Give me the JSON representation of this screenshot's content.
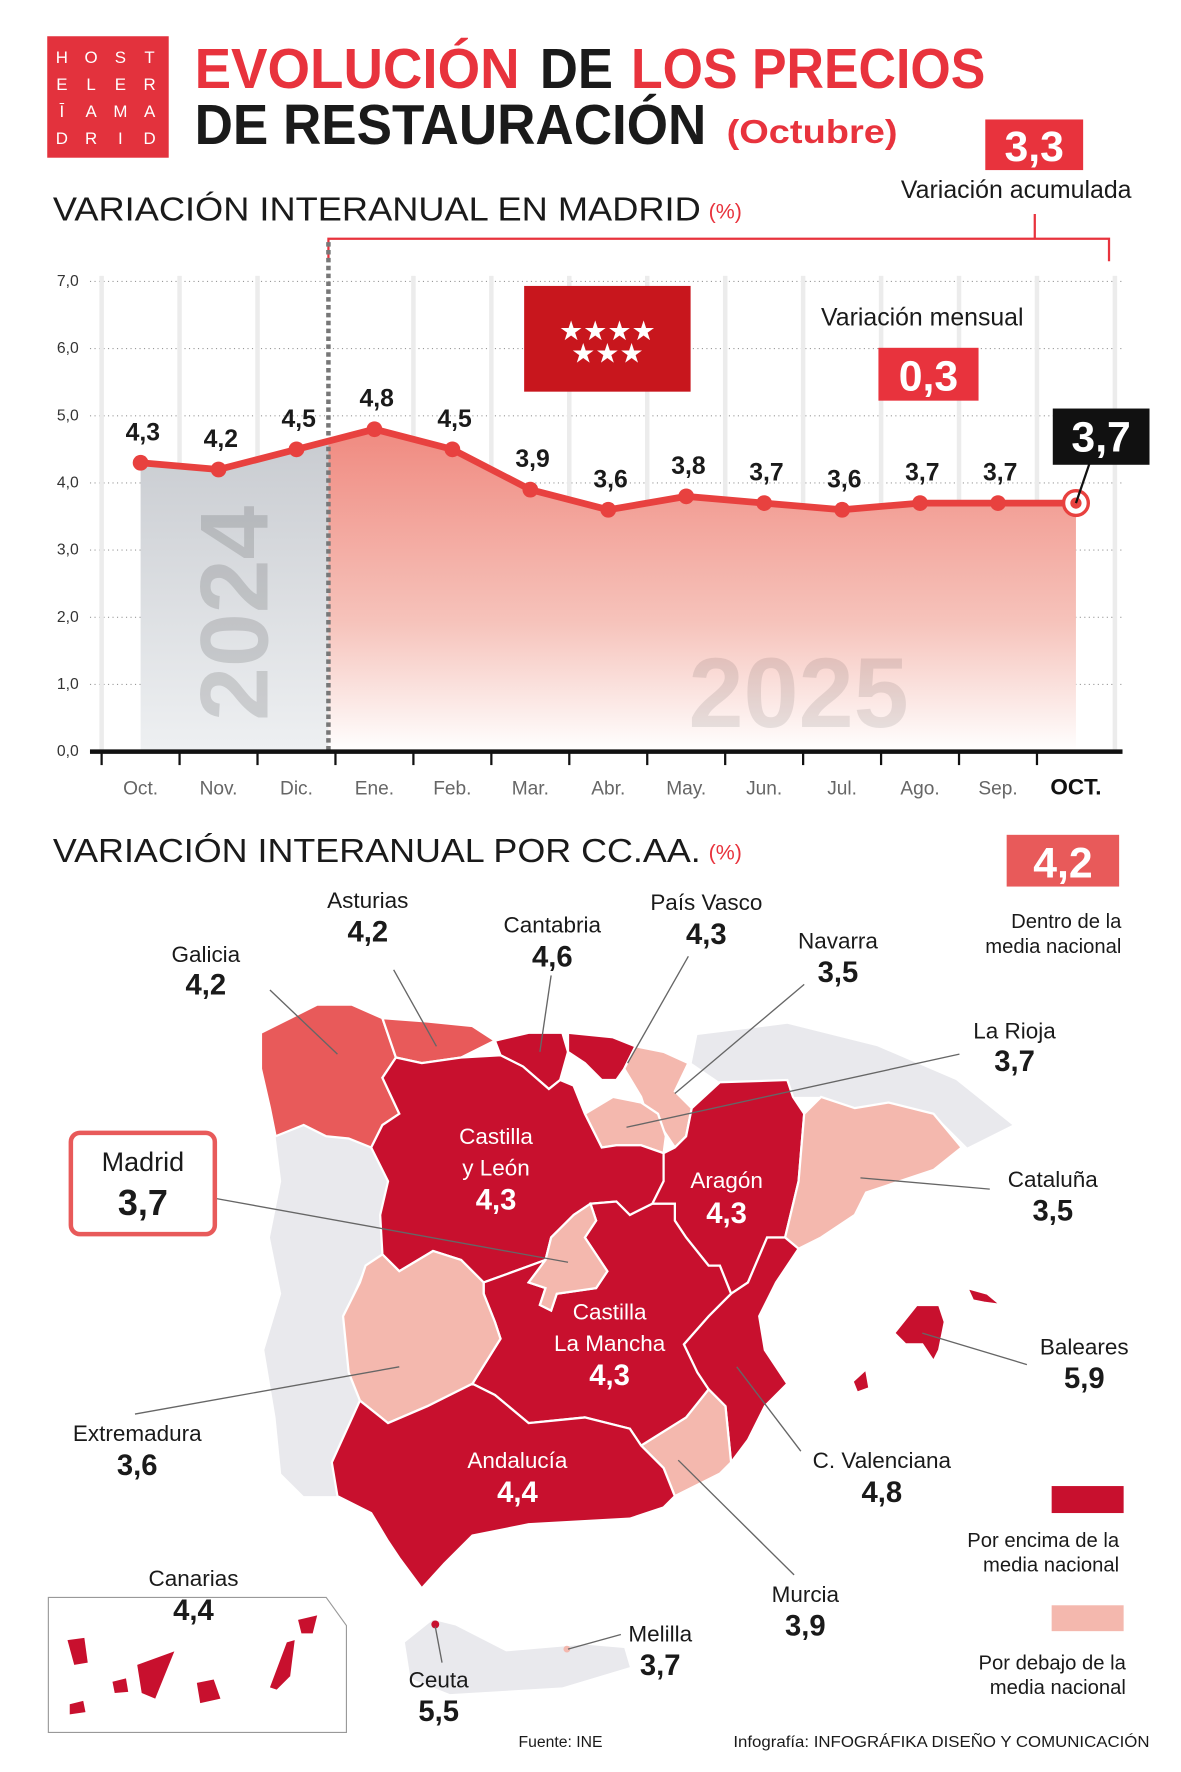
{
  "logo": {
    "text_rows": [
      "HOST",
      "ELER",
      "ĪAMA",
      "DRID"
    ],
    "color": "#e3323d"
  },
  "header": {
    "title_1a": "EVOLUCIÓN",
    "title_1b": "DE",
    "title_1c": "LOS PRECIOS",
    "title_2a": "DE RESTAURACIÓN",
    "title_2b": "(Octubre)"
  },
  "accumulated": {
    "value": "3,3",
    "label": "Variación acumulada"
  },
  "monthly": {
    "value": "0,3",
    "label": "Variación mensual"
  },
  "section1": {
    "title": "VARIACIÓN INTERANUAL EN MADRID",
    "unit": "(%)"
  },
  "section2": {
    "title": "VARIACIÓN INTERANUAL POR CC.AA.",
    "unit": "(%)"
  },
  "national": {
    "value": "4,2",
    "label_1": "Dentro de la",
    "label_2": "media nacional"
  },
  "legend": {
    "above_1": "Por encima de la",
    "above_2": "media nacional",
    "below_1": "Por debajo de la",
    "below_2": "media nacional"
  },
  "colors": {
    "accent": "#e8333d",
    "above": "#c8102e",
    "within": "#e85a5a",
    "below": "#f4b8ae",
    "line": "#e8413f",
    "other_land": "#e9e9ed"
  },
  "chart_data": {
    "type": "line",
    "title": "VARIACIÓN INTERANUAL EN MADRID (%)",
    "categories": [
      "Oct.",
      "Nov.",
      "Dic.",
      "Ene.",
      "Feb.",
      "Mar.",
      "Abr.",
      "May.",
      "Jun.",
      "Jul.",
      "Ago.",
      "Sep.",
      "OCT."
    ],
    "values": [
      4.3,
      4.2,
      4.5,
      4.8,
      4.5,
      3.9,
      3.6,
      3.8,
      3.7,
      3.6,
      3.7,
      3.7,
      3.7
    ],
    "labels": [
      "4,3",
      "4,2",
      "4,5",
      "4,8",
      "4,5",
      "3,9",
      "3,6",
      "3,8",
      "3,7",
      "3,6",
      "3,7",
      "3,7",
      "3,7"
    ],
    "ylim": [
      0,
      7
    ],
    "yticks": [
      "0,0",
      "1,0",
      "2,0",
      "3,0",
      "4,0",
      "5,0",
      "6,0",
      "7,0"
    ],
    "grid": true,
    "period_labels": [
      "2024",
      "2025"
    ],
    "highlight_value": "3,7"
  },
  "regions": [
    {
      "name": "Galicia",
      "value": "4,2",
      "level": "within"
    },
    {
      "name": "Asturias",
      "value": "4,2",
      "level": "within"
    },
    {
      "name": "Cantabria",
      "value": "4,6",
      "level": "above"
    },
    {
      "name": "País Vasco",
      "value": "4,3",
      "level": "above"
    },
    {
      "name": "Navarra",
      "value": "3,5",
      "level": "below"
    },
    {
      "name": "La Rioja",
      "value": "3,7",
      "level": "below"
    },
    {
      "name": "Castilla y León",
      "value": "4,3",
      "level": "above"
    },
    {
      "name": "Madrid",
      "value": "3,7",
      "level": "below"
    },
    {
      "name": "Aragón",
      "value": "4,3",
      "level": "above"
    },
    {
      "name": "Cataluña",
      "value": "3,5",
      "level": "below"
    },
    {
      "name": "C. Valenciana",
      "value": "4,8",
      "level": "above"
    },
    {
      "name": "Murcia",
      "value": "3,9",
      "level": "below"
    },
    {
      "name": "Castilla La Mancha",
      "value": "4,3",
      "level": "above"
    },
    {
      "name": "Extremadura",
      "value": "3,6",
      "level": "below"
    },
    {
      "name": "Andalucía",
      "value": "4,4",
      "level": "above"
    },
    {
      "name": "Baleares",
      "value": "5,9",
      "level": "above"
    },
    {
      "name": "Canarias",
      "value": "4,4",
      "level": "above"
    },
    {
      "name": "Ceuta",
      "value": "5,5",
      "level": "above"
    },
    {
      "name": "Melilla",
      "value": "3,7",
      "level": "below"
    }
  ],
  "footer": {
    "source": "Fuente: INE",
    "credit": "Infografía: INFOGRÁFIKA DISEÑO Y COMUNICACIÓN"
  }
}
